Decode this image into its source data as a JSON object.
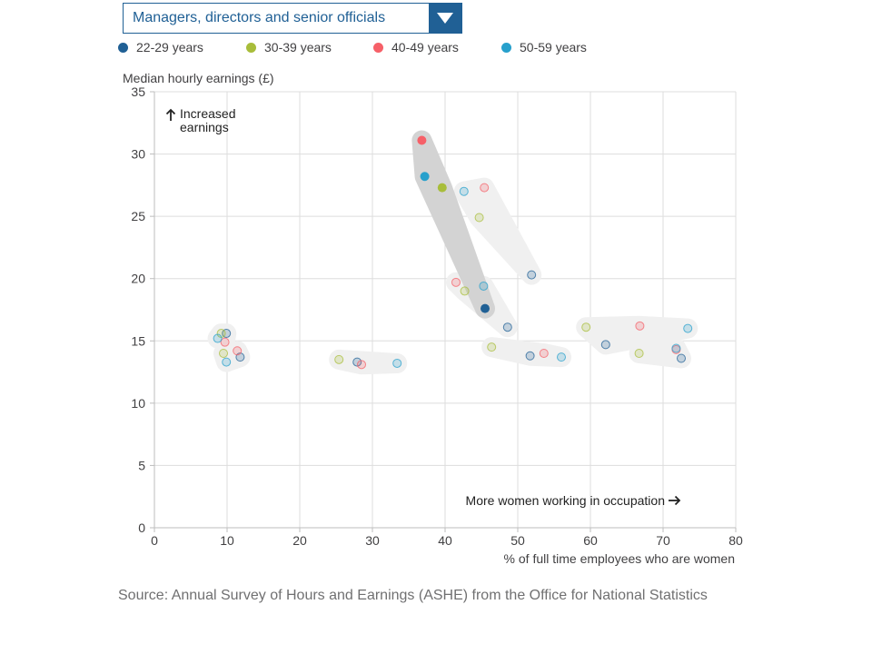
{
  "dropdown": {
    "selected": "Managers, directors and senior officials",
    "arrow_icon": "triangle-down-icon"
  },
  "legend": [
    {
      "label": "22-29 years",
      "color": "#206095"
    },
    {
      "label": "30-39 years",
      "color": "#a8bd3a"
    },
    {
      "label": "40-49 years",
      "color": "#f66068"
    },
    {
      "label": "50-59 years",
      "color": "#27a0cc"
    }
  ],
  "source": "Source: Annual Survey of Hours and Earnings (ASHE) from the Office for National Statistics",
  "chart_data": {
    "type": "scatter",
    "ylabel": "Median hourly earnings (£)",
    "xlabel": "% of full time employees who are women",
    "xlim": [
      0,
      80
    ],
    "ylim": [
      0,
      35
    ],
    "x_ticks": [
      0,
      10,
      20,
      30,
      40,
      50,
      60,
      70,
      80
    ],
    "y_ticks": [
      0,
      5,
      10,
      15,
      20,
      25,
      30,
      35
    ],
    "grid": true,
    "annotations": {
      "y_direction": "Increased earnings",
      "x_direction": "More women working in occupation"
    },
    "highlighted_group": {
      "name": "Managers, directors and senior officials",
      "points": [
        {
          "age": "22-29 years",
          "x": 45.5,
          "y": 17.6
        },
        {
          "age": "30-39 years",
          "x": 39.6,
          "y": 27.3
        },
        {
          "age": "40-49 years",
          "x": 36.8,
          "y": 31.1
        },
        {
          "age": "50-59 years",
          "x": 37.2,
          "y": 28.2
        }
      ]
    },
    "other_groups": [
      {
        "points": [
          {
            "age": "22-29 years",
            "x": 51.9,
            "y": 20.3
          },
          {
            "age": "30-39 years",
            "x": 44.7,
            "y": 24.9
          },
          {
            "age": "40-49 years",
            "x": 45.4,
            "y": 27.3
          },
          {
            "age": "50-59 years",
            "x": 42.6,
            "y": 27.0
          }
        ]
      },
      {
        "points": [
          {
            "age": "22-29 years",
            "x": 48.6,
            "y": 16.1
          },
          {
            "age": "30-39 years",
            "x": 42.7,
            "y": 19.0
          },
          {
            "age": "40-49 years",
            "x": 41.5,
            "y": 19.7
          },
          {
            "age": "50-59 years",
            "x": 45.3,
            "y": 19.4
          }
        ]
      },
      {
        "points": [
          {
            "age": "22-29 years",
            "x": 9.9,
            "y": 15.6
          },
          {
            "age": "30-39 years",
            "x": 9.2,
            "y": 15.6
          },
          {
            "age": "40-49 years",
            "x": 9.7,
            "y": 14.9
          },
          {
            "age": "50-59 years",
            "x": 8.7,
            "y": 15.2
          }
        ]
      },
      {
        "points": [
          {
            "age": "22-29 years",
            "x": 11.8,
            "y": 13.7
          },
          {
            "age": "30-39 years",
            "x": 9.5,
            "y": 14.0
          },
          {
            "age": "40-49 years",
            "x": 11.4,
            "y": 14.2
          },
          {
            "age": "50-59 years",
            "x": 9.9,
            "y": 13.3
          }
        ]
      },
      {
        "points": [
          {
            "age": "22-29 years",
            "x": 27.9,
            "y": 13.3
          },
          {
            "age": "30-39 years",
            "x": 25.4,
            "y": 13.5
          },
          {
            "age": "40-49 years",
            "x": 28.5,
            "y": 13.1
          },
          {
            "age": "50-59 years",
            "x": 33.4,
            "y": 13.2
          }
        ]
      },
      {
        "points": [
          {
            "age": "22-29 years",
            "x": 51.7,
            "y": 13.8
          },
          {
            "age": "30-39 years",
            "x": 46.4,
            "y": 14.5
          },
          {
            "age": "40-49 years",
            "x": 53.6,
            "y": 14.0
          },
          {
            "age": "50-59 years",
            "x": 56.0,
            "y": 13.7
          }
        ]
      },
      {
        "points": [
          {
            "age": "22-29 years",
            "x": 62.1,
            "y": 14.7
          },
          {
            "age": "30-39 years",
            "x": 59.4,
            "y": 16.1
          },
          {
            "age": "40-49 years",
            "x": 66.8,
            "y": 16.2
          },
          {
            "age": "50-59 years",
            "x": 73.4,
            "y": 16.0
          }
        ]
      },
      {
        "points": [
          {
            "age": "22-29 years",
            "x": 72.5,
            "y": 13.6
          },
          {
            "age": "30-39 years",
            "x": 66.7,
            "y": 14.0
          },
          {
            "age": "40-49 years",
            "x": 71.8,
            "y": 14.3
          },
          {
            "age": "50-59 years",
            "x": 71.8,
            "y": 14.4
          }
        ]
      }
    ]
  }
}
